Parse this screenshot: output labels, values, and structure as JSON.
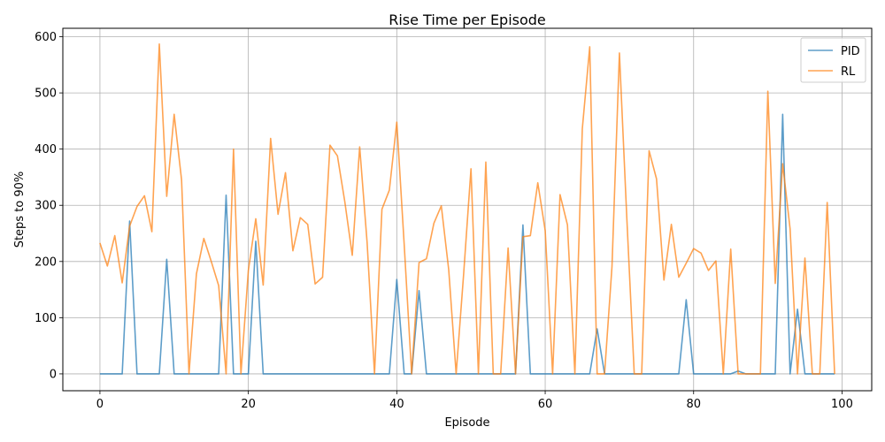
{
  "chart_data": {
    "type": "line",
    "title": "Rise Time per Episode",
    "xlabel": "Episode",
    "ylabel": "Steps to 90%",
    "xlim": [
      -5,
      104
    ],
    "ylim": [
      -30,
      615
    ],
    "xticks": [
      0,
      20,
      40,
      60,
      80,
      100
    ],
    "yticks": [
      0,
      100,
      200,
      300,
      400,
      500,
      600
    ],
    "grid": true,
    "legend_position": "top-right",
    "x": [
      0,
      1,
      2,
      3,
      4,
      5,
      6,
      7,
      8,
      9,
      10,
      11,
      12,
      13,
      14,
      15,
      16,
      17,
      18,
      19,
      20,
      21,
      22,
      23,
      24,
      25,
      26,
      27,
      28,
      29,
      30,
      31,
      32,
      33,
      34,
      35,
      36,
      37,
      38,
      39,
      40,
      41,
      42,
      43,
      44,
      45,
      46,
      47,
      48,
      49,
      50,
      51,
      52,
      53,
      54,
      55,
      56,
      57,
      58,
      59,
      60,
      61,
      62,
      63,
      64,
      65,
      66,
      67,
      68,
      69,
      70,
      71,
      72,
      73,
      74,
      75,
      76,
      77,
      78,
      79,
      80,
      81,
      82,
      83,
      84,
      85,
      86,
      87,
      88,
      89,
      90,
      91,
      92,
      93,
      94,
      95,
      96,
      97,
      98,
      99
    ],
    "series": [
      {
        "name": "PID",
        "color": "#1f77b4",
        "values": [
          0,
          0,
          0,
          0,
          272,
          0,
          0,
          0,
          0,
          204,
          0,
          0,
          0,
          0,
          0,
          0,
          0,
          318,
          0,
          0,
          0,
          236,
          0,
          0,
          0,
          0,
          0,
          0,
          0,
          0,
          0,
          0,
          0,
          0,
          0,
          0,
          0,
          0,
          0,
          0,
          168,
          0,
          0,
          148,
          0,
          0,
          0,
          0,
          0,
          0,
          0,
          0,
          0,
          0,
          0,
          0,
          0,
          265,
          0,
          0,
          0,
          0,
          0,
          0,
          0,
          0,
          0,
          80,
          0,
          0,
          0,
          0,
          0,
          0,
          0,
          0,
          0,
          0,
          0,
          132,
          0,
          0,
          0,
          0,
          0,
          0,
          5,
          0,
          0,
          0,
          0,
          0,
          462,
          0,
          115,
          0,
          0,
          0,
          0,
          0
        ]
      },
      {
        "name": "RL",
        "color": "#ff7f0e",
        "values": [
          233,
          192,
          246,
          162,
          263,
          298,
          317,
          253,
          587,
          316,
          462,
          345,
          0,
          178,
          241,
          200,
          157,
          0,
          400,
          0,
          184,
          276,
          158,
          419,
          284,
          358,
          219,
          278,
          266,
          160,
          172,
          407,
          388,
          306,
          211,
          404,
          234,
          0,
          293,
          327,
          448,
          230,
          0,
          198,
          205,
          268,
          299,
          185,
          0,
          176,
          365,
          0,
          377,
          0,
          0,
          224,
          0,
          244,
          246,
          340,
          255,
          0,
          319,
          265,
          0,
          436,
          582,
          0,
          0,
          191,
          571,
          277,
          0,
          0,
          397,
          347,
          167,
          266,
          172,
          197,
          223,
          215,
          184,
          201,
          0,
          222,
          0,
          0,
          0,
          0,
          503,
          161,
          374,
          258,
          0,
          206,
          0,
          0,
          305,
          0
        ]
      }
    ]
  }
}
